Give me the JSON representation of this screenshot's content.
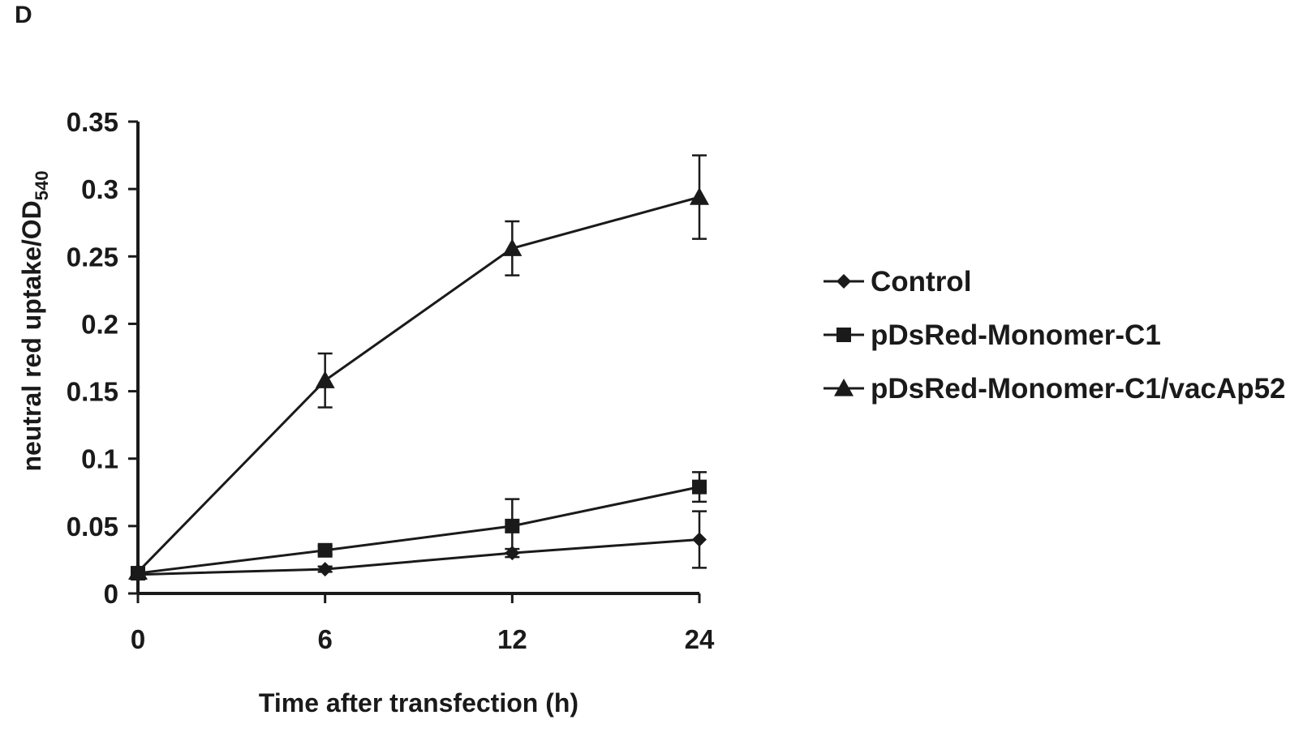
{
  "panel_label": "D",
  "chart_data": {
    "type": "line",
    "xlabel": "Time after transfection (h)",
    "ylabel_main": "neutral red uptake/OD",
    "ylabel_sub": "540",
    "categories": [
      "0",
      "6",
      "12",
      "24"
    ],
    "y_ticks": [
      "0",
      "0.05",
      "0.1",
      "0.15",
      "0.2",
      "0.25",
      "0.3",
      "0.35"
    ],
    "ylim": [
      0,
      0.35
    ],
    "grid": false,
    "legend_position": "right",
    "series": [
      {
        "name": "Control",
        "marker": "diamond",
        "values": [
          0.014,
          0.018,
          0.03,
          0.04
        ],
        "errors": [
          0.003,
          0.002,
          0.003,
          0.021
        ]
      },
      {
        "name": "pDsRed-Monomer-C1",
        "marker": "square",
        "values": [
          0.015,
          0.032,
          0.05,
          0.079
        ],
        "errors": [
          0.003,
          0.003,
          0.02,
          0.011
        ]
      },
      {
        "name": "pDsRed-Monomer-C1/vacAp52",
        "marker": "triangle",
        "values": [
          0.016,
          0.158,
          0.256,
          0.294
        ],
        "errors": [
          0.003,
          0.02,
          0.02,
          0.031
        ]
      }
    ]
  }
}
